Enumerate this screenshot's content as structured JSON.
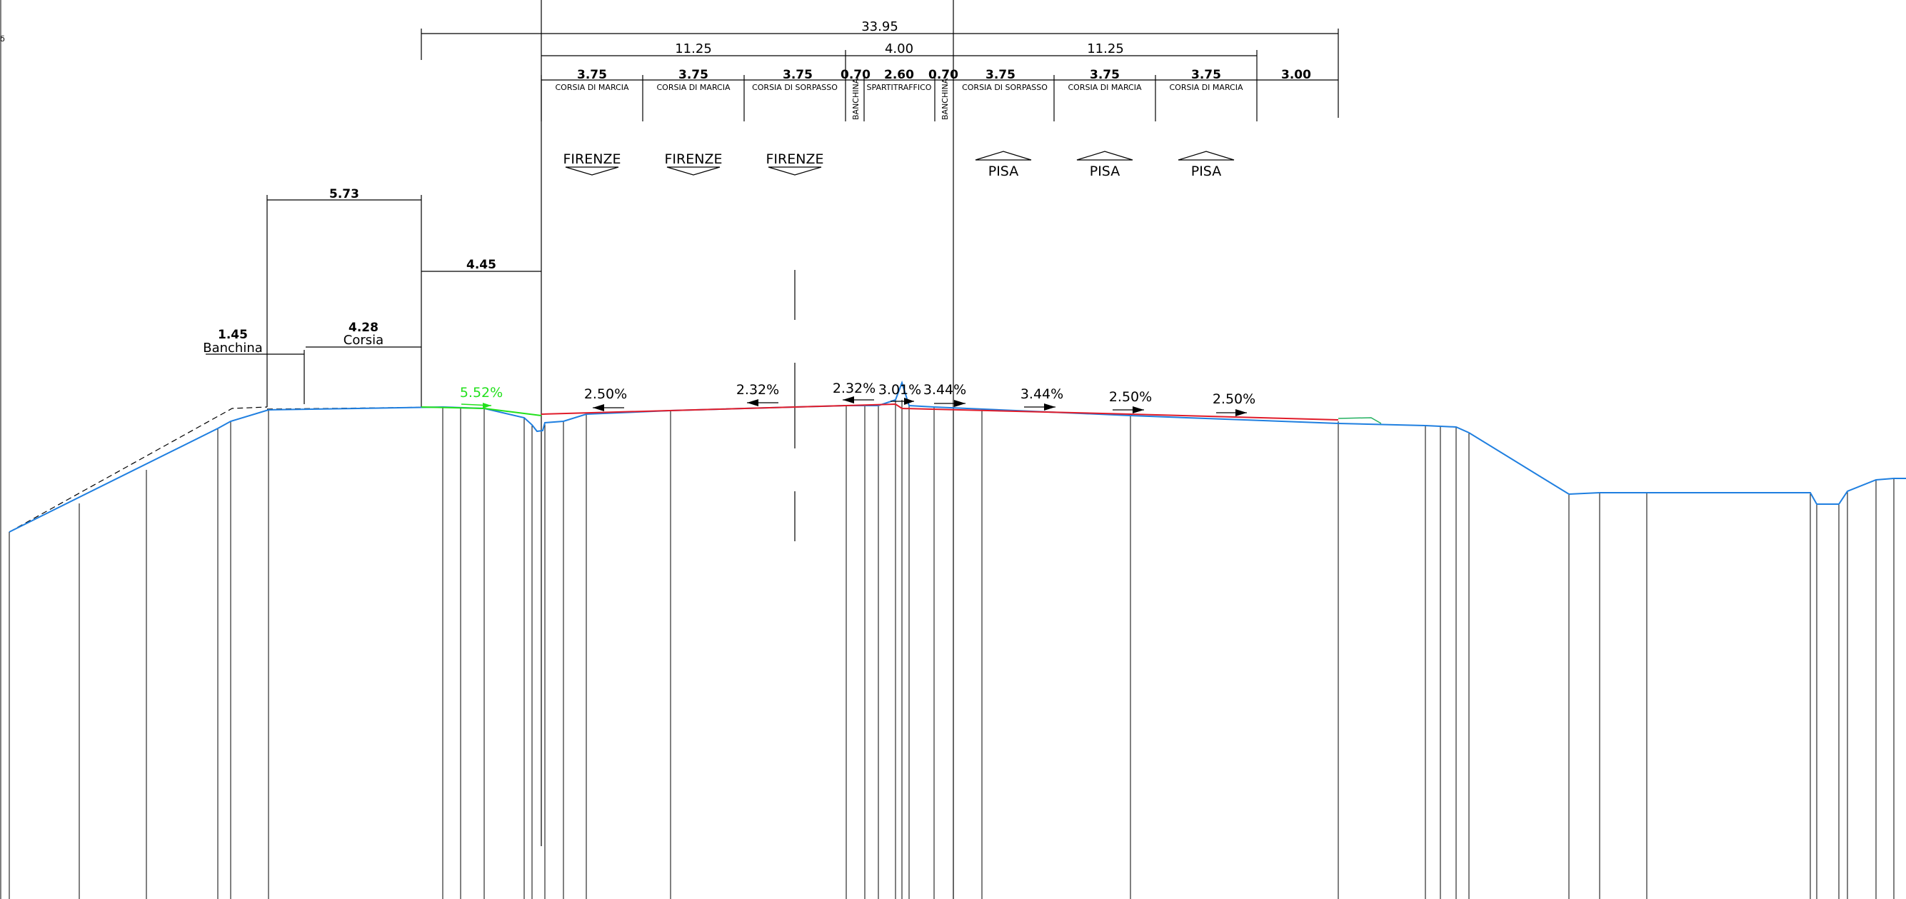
{
  "dimensions": {
    "total": "33.95",
    "left_carriageway": "11.25",
    "median": "4.00",
    "right_carriageway": "11.25",
    "right_extra": "3.00",
    "lane_1": "3.75",
    "lane_2": "3.75",
    "lane_3": "3.75",
    "shoulder_left": "0.70",
    "divider": "2.60",
    "shoulder_right": "0.70",
    "lane_4": "3.75",
    "lane_5": "3.75",
    "lane_6": "3.75",
    "side_total": "5.73",
    "side_mid": "4.45",
    "banchina_width": "1.45",
    "corsia_width": "4.28"
  },
  "labels": {
    "lane_1": "CORSIA DI MARCIA",
    "lane_2": "CORSIA DI MARCIA",
    "lane_3": "CORSIA DI SORPASSO",
    "shoulder_left": "BANCHINA",
    "divider": "SPARTITRAFFICO",
    "shoulder_right": "BANCHINA",
    "lane_4": "CORSIA DI SORPASSO",
    "lane_5": "CORSIA DI MARCIA",
    "lane_6": "CORSIA DI MARCIA",
    "banchina": "Banchina",
    "corsia": "Corsia"
  },
  "directions": {
    "left": [
      "FIRENZE",
      "FIRENZE",
      "FIRENZE"
    ],
    "right": [
      "PISA",
      "PISA",
      "PISA"
    ]
  },
  "slopes": {
    "green": "5.52%",
    "s1": "2.50%",
    "s2": "2.32%",
    "s3": "2.32%",
    "s4": "3.01%",
    "s5": "3.44%",
    "s6": "3.44%",
    "s7": "2.50%",
    "s8": "2.50%"
  },
  "colors": {
    "existing_ground": "#1f7fe0",
    "design_profile": "#e01c2a",
    "new_slope": "#22e01c"
  }
}
